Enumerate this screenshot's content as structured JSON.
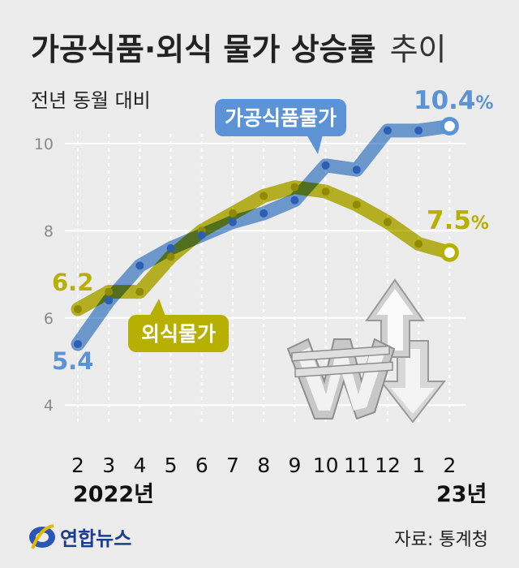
{
  "title": {
    "main": "가공식품·외식 물가 상승률",
    "light": "추이"
  },
  "subtitle": "전년 동월 대비",
  "colors": {
    "processed": "#5b93d6",
    "dining": "#b8b000",
    "background": "#ececec",
    "grid": "#ffffff"
  },
  "chart_data": {
    "type": "line",
    "categories": [
      "2",
      "3",
      "4",
      "5",
      "6",
      "7",
      "8",
      "9",
      "10",
      "11",
      "12",
      "1",
      "2"
    ],
    "year_labels": {
      "start": "2022년",
      "end": "23년"
    },
    "ylim": [
      4,
      10.8
    ],
    "yticks": [
      4,
      6,
      8,
      10
    ],
    "series": [
      {
        "name": "가공식품물가",
        "values": [
          5.4,
          6.4,
          7.2,
          7.6,
          7.9,
          8.2,
          8.4,
          8.7,
          9.5,
          9.4,
          10.3,
          10.3,
          10.4
        ],
        "start_label": "5.4",
        "end_label": "10.4",
        "end_unit": "%"
      },
      {
        "name": "외식물가",
        "values": [
          6.2,
          6.6,
          6.6,
          7.4,
          8.0,
          8.4,
          8.8,
          9.0,
          8.9,
          8.6,
          8.2,
          7.7,
          7.5
        ],
        "start_label": "6.2",
        "end_label": "7.5",
        "end_unit": "%"
      }
    ],
    "grid": true,
    "legend": "inline tags"
  },
  "source": "자료: 통계청",
  "logo": {
    "text": "연합뉴스",
    "icon": "yonhap-logo-icon"
  },
  "illustration": {
    "icon": "won-price-up-icon"
  }
}
